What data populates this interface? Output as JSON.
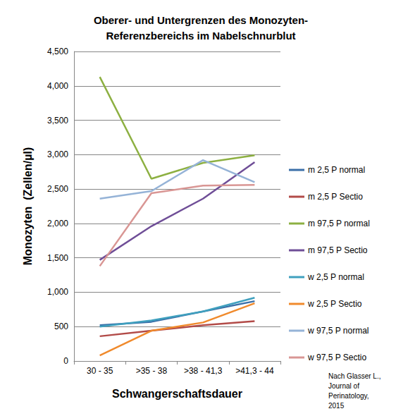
{
  "chart_data": {
    "type": "line",
    "title": "Oberer- und Untergrenzen des Monozyten-\nReferenzbereichs im Nabelschnurblut",
    "x_label": "Schwangerschaftsdauer",
    "y_label": "Monozyten  (Zellen/µl)",
    "annotation": "Nach Glasser L.,\nJournal of\nPerinatology,\n2015",
    "categories": [
      "30 - 35",
      ">35 - 38",
      ">38 - 41,3",
      ">41,3 - 44"
    ],
    "series": [
      {
        "name": "m 2,5 P normal",
        "color": "#3a6fa8",
        "values": [
          520,
          570,
          720,
          870
        ]
      },
      {
        "name": "m 2,5 P Sectio",
        "color": "#b24b48",
        "values": [
          360,
          440,
          520,
          580
        ]
      },
      {
        "name": "m 97,5 P normal",
        "color": "#8db042",
        "values": [
          4130,
          2650,
          2880,
          2990
        ]
      },
      {
        "name": "m 97,5 P Sectio",
        "color": "#6f4e97",
        "values": [
          1470,
          1960,
          2360,
          2890
        ]
      },
      {
        "name": "w 2,5 P normal",
        "color": "#3fa0be",
        "values": [
          500,
          590,
          720,
          920
        ]
      },
      {
        "name": "w 2,5 P Sectio",
        "color": "#f08a2c",
        "values": [
          80,
          440,
          560,
          840
        ]
      },
      {
        "name": "w 97,5 P normal",
        "color": "#95b3d7",
        "values": [
          2360,
          2470,
          2920,
          2600
        ]
      },
      {
        "name": "w 97,5 P Sectio",
        "color": "#d99694",
        "values": [
          1380,
          2440,
          2550,
          2560
        ]
      }
    ],
    "ylim": [
      0,
      4500
    ],
    "yticks": [
      0,
      500,
      1000,
      1500,
      2000,
      2500,
      3000,
      3500,
      4000,
      4500
    ],
    "grid": true,
    "legend": "right",
    "marker": "none"
  }
}
